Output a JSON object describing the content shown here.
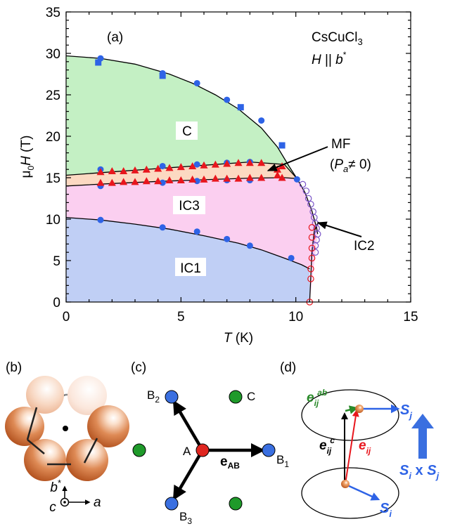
{
  "chart_data": {
    "type": "scatter",
    "panel_label": "(a)",
    "compound": "CsCuCl",
    "compound_sub": "3",
    "field_dir_H": "H",
    "field_dir_rel": " || ",
    "field_dir_b": "b",
    "field_dir_star": "*",
    "xlabel": "T",
    "xunit": " (K)",
    "ylabel_mu": "μ",
    "ylabel_sub0": "0",
    "ylabel_H": "H",
    "yunit": " (T)",
    "xlim": [
      0,
      15
    ],
    "ylim": [
      0,
      35
    ],
    "x_ticks": [
      "0",
      "5",
      "10",
      "15"
    ],
    "y_ticks": [
      "0",
      "5",
      "10",
      "15",
      "20",
      "25",
      "30",
      "35"
    ],
    "phases": {
      "C": "C",
      "IC3": "IC3",
      "IC1": "IC1",
      "MF_line1": "MF",
      "MF_line2_open": "(",
      "MF_P": "P",
      "MF_sub": "a",
      "MF_rest": "≠ 0)",
      "IC2": "IC2"
    },
    "colors": {
      "C_phase": "#c4f0c4",
      "MF_phase": "#fcd9c2",
      "IC3_phase": "#fbcff0",
      "IC1_phase": "#c0cff5",
      "blue": "#2e63e6",
      "red": "#e8161d",
      "purple": "#7a55c8"
    },
    "boundaries": {
      "C_upper": [
        [
          0,
          29.7
        ],
        [
          1.5,
          29.4
        ],
        [
          3,
          28.7
        ],
        [
          4.5,
          27.5
        ],
        [
          5.5,
          26.4
        ],
        [
          6.5,
          25.0
        ],
        [
          7.5,
          23.3
        ],
        [
          8.5,
          21.0
        ],
        [
          9.2,
          18.7
        ],
        [
          9.7,
          16.4
        ],
        [
          10.05,
          14.9
        ]
      ],
      "MF_upper": [
        [
          0,
          15.3
        ],
        [
          2,
          15.7
        ],
        [
          4,
          16.1
        ],
        [
          6,
          16.5
        ],
        [
          8,
          16.9
        ],
        [
          9.5,
          16.6
        ],
        [
          10.05,
          14.9
        ]
      ],
      "MF_lower": [
        [
          0,
          14.0
        ],
        [
          2,
          14.3
        ],
        [
          4,
          14.55
        ],
        [
          6,
          14.75
        ],
        [
          8,
          14.95
        ],
        [
          9.5,
          15.0
        ],
        [
          10.05,
          14.9
        ]
      ],
      "IC3_right": [
        [
          10.05,
          14.9
        ],
        [
          10.4,
          13.2
        ],
        [
          10.7,
          11.0
        ],
        [
          10.9,
          9.0
        ],
        [
          10.95,
          8.2
        ]
      ],
      "IC2_inner": [
        [
          10.6,
          0
        ],
        [
          10.65,
          3
        ],
        [
          10.7,
          6
        ],
        [
          10.8,
          8.5
        ],
        [
          10.95,
          9.5
        ]
      ],
      "IC1_upper": [
        [
          0,
          10.2
        ],
        [
          1.5,
          9.9
        ],
        [
          3,
          9.4
        ],
        [
          4.5,
          8.8
        ],
        [
          6,
          8.0
        ],
        [
          7.5,
          7.1
        ],
        [
          8.5,
          6.3
        ],
        [
          9.5,
          5.3
        ],
        [
          10.25,
          4.5
        ],
        [
          10.6,
          4.0
        ]
      ]
    },
    "series": [
      {
        "marker": "circle",
        "color": "blue",
        "points": [
          [
            1.5,
            29.4
          ],
          [
            4.2,
            27.6
          ],
          [
            5.7,
            26.4
          ],
          [
            7.0,
            24.4
          ],
          [
            8.5,
            21.9
          ],
          [
            1.5,
            16.0
          ],
          [
            4.2,
            16.4
          ],
          [
            5.7,
            16.6
          ],
          [
            7.0,
            16.8
          ],
          [
            8.0,
            16.9
          ],
          [
            1.5,
            14.0
          ],
          [
            4.2,
            14.4
          ],
          [
            5.7,
            14.6
          ],
          [
            7.0,
            14.7
          ],
          [
            8.0,
            14.7
          ],
          [
            10.05,
            14.8
          ],
          [
            1.5,
            9.9
          ],
          [
            4.2,
            9.0
          ],
          [
            5.7,
            8.5
          ],
          [
            7.0,
            7.6
          ],
          [
            8.0,
            6.8
          ],
          [
            9.8,
            5.3
          ]
        ]
      },
      {
        "marker": "square",
        "color": "blue",
        "points": [
          [
            1.4,
            28.9
          ],
          [
            4.2,
            27.3
          ],
          [
            7.6,
            23.5
          ],
          [
            9.4,
            18.9
          ]
        ]
      },
      {
        "marker": "triangle",
        "color": "red",
        "points": [
          [
            1.5,
            15.7
          ],
          [
            2.0,
            15.8
          ],
          [
            2.5,
            15.8
          ],
          [
            3.0,
            15.9
          ],
          [
            3.5,
            16.0
          ],
          [
            4.0,
            16.1
          ],
          [
            4.5,
            16.2
          ],
          [
            5.0,
            16.3
          ],
          [
            5.5,
            16.4
          ],
          [
            6.0,
            16.5
          ],
          [
            6.5,
            16.6
          ],
          [
            7.0,
            16.7
          ],
          [
            7.5,
            16.8
          ],
          [
            8.0,
            16.8
          ],
          [
            8.5,
            16.8
          ],
          [
            9.2,
            16.0
          ],
          [
            9.4,
            16.4
          ],
          [
            1.5,
            14.4
          ],
          [
            2.0,
            14.4
          ],
          [
            2.5,
            14.5
          ],
          [
            3.0,
            14.5
          ],
          [
            3.5,
            14.6
          ],
          [
            4.0,
            14.6
          ],
          [
            4.5,
            14.7
          ],
          [
            5.0,
            14.7
          ],
          [
            5.5,
            14.8
          ],
          [
            6.0,
            14.8
          ],
          [
            6.5,
            14.9
          ],
          [
            7.0,
            14.9
          ],
          [
            7.5,
            14.9
          ],
          [
            8.0,
            15.0
          ],
          [
            8.5,
            15.0
          ],
          [
            9.2,
            15.3
          ],
          [
            9.4,
            15.0
          ]
        ]
      },
      {
        "marker": "open-circle",
        "color": "purple",
        "points": [
          [
            10.3,
            14.2
          ],
          [
            10.45,
            13.4
          ],
          [
            10.55,
            12.5
          ],
          [
            10.65,
            11.8
          ],
          [
            10.75,
            10.9
          ],
          [
            10.8,
            10.2
          ],
          [
            10.85,
            9.5
          ],
          [
            10.9,
            8.9
          ],
          [
            10.95,
            8.2
          ],
          [
            10.9,
            7.5
          ],
          [
            10.85,
            6.8
          ],
          [
            10.85,
            6.0
          ]
        ]
      },
      {
        "marker": "open-circle",
        "color": "red",
        "points": [
          [
            10.7,
            9.0
          ],
          [
            10.7,
            7.8
          ],
          [
            10.7,
            6.5
          ],
          [
            10.7,
            5.3
          ],
          [
            10.65,
            4.0
          ],
          [
            10.65,
            2.8
          ],
          [
            10.6,
            0.0
          ]
        ]
      }
    ]
  },
  "panels": {
    "b": {
      "label": "(b)",
      "axis_b": "b",
      "axis_b_star": "*",
      "axis_c": "c",
      "axis_a": "a"
    },
    "c": {
      "label": "(c)",
      "atom_A": "A",
      "atom_B1": "B",
      "atom_B1_sub": "1",
      "atom_B2": "B",
      "atom_B2_sub": "2",
      "atom_B3": "B",
      "atom_B3_sub": "3",
      "atom_C": "C",
      "vec_e": "e",
      "vec_sub": "AB"
    },
    "d": {
      "label": "(d)",
      "e_ab": "e",
      "e_ab_sub": "ij",
      "e_ab_sup": "ab",
      "e_c": "e",
      "e_c_sub": "ij",
      "e_c_sup": "c",
      "e_ij": "e",
      "e_ij_sub": "ij",
      "S_j": "S",
      "S_j_sub": "j",
      "S_i": "S",
      "S_i_sub": "i",
      "cross_S1": "S",
      "cross_S1_sub": "i",
      "cross_x": " x ",
      "cross_S2": "S",
      "cross_S2_sub": "j"
    }
  }
}
